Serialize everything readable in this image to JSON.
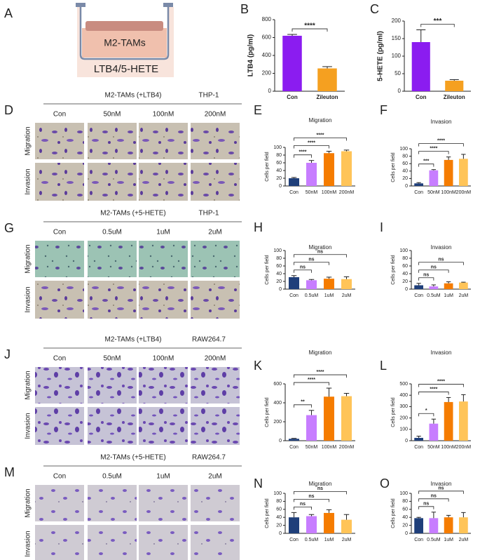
{
  "panel_a": {
    "label": "A",
    "well_label": "M2-TAMs",
    "medium_label": "LTB4/5-HETE"
  },
  "micrographs": [
    {
      "label": "D",
      "condition": "M2-TAMs (+LTB4)",
      "cell_line": "THP-1",
      "columns": [
        "Con",
        "50nM",
        "100nM",
        "200nM"
      ],
      "rows": [
        "Migration",
        "Invasion"
      ]
    },
    {
      "label": "G",
      "condition": "M2-TAMs (+5-HETE)",
      "cell_line": "THP-1",
      "columns": [
        "Con",
        "0.5uM",
        "1uM",
        "2uM"
      ],
      "rows": [
        "Migration",
        "Invasion"
      ]
    },
    {
      "label": "J",
      "condition": "M2-TAMs (+LTB4)",
      "cell_line": "RAW264.7",
      "columns": [
        "Con",
        "50nM",
        "100nM",
        "200nM"
      ],
      "rows": [
        "Migration",
        "Invasion"
      ]
    },
    {
      "label": "M",
      "condition": "M2-TAMs (+5-HETE)",
      "cell_line": "RAW264.7",
      "columns": [
        "Con",
        "0.5uM",
        "1uM",
        "2uM"
      ],
      "rows": [
        "Migration",
        "Invasion"
      ]
    }
  ],
  "chart_data": [
    {
      "type": "bar",
      "label": "B",
      "y_label": "LTB4 (pg/ml)",
      "categories": [
        "Con",
        "Zileuton"
      ],
      "values": [
        620,
        255
      ],
      "errors": [
        15,
        20
      ],
      "colors": [
        "#8b1cf0",
        "#f5a020"
      ],
      "ylim": [
        0,
        800
      ],
      "yticks": [
        0,
        200,
        400,
        600,
        800
      ],
      "significance": [
        "****"
      ]
    },
    {
      "type": "bar",
      "label": "C",
      "y_label": "5-HETE (pg/ml)",
      "categories": [
        "Con",
        "Zileuton"
      ],
      "values": [
        140,
        30
      ],
      "errors": [
        35,
        3
      ],
      "colors": [
        "#8b1cf0",
        "#f5a020"
      ],
      "ylim": [
        0,
        200
      ],
      "yticks": [
        0,
        50,
        100,
        150,
        200
      ],
      "significance": [
        "***"
      ]
    },
    {
      "type": "bar",
      "label": "E",
      "title": "Migration",
      "y_label": "Cells per field",
      "categories": [
        "Con",
        "50nM",
        "100nM",
        "200nM"
      ],
      "values": [
        20,
        60,
        85,
        90
      ],
      "errors": [
        2,
        6,
        5,
        3
      ],
      "colors": [
        "#1f3f7a",
        "#c77dff",
        "#f57c00",
        "#ffc458"
      ],
      "ylim": [
        0,
        100
      ],
      "yticks": [
        0,
        20,
        40,
        60,
        80,
        100
      ],
      "significance": [
        "****",
        "****",
        "****"
      ]
    },
    {
      "type": "bar",
      "label": "F",
      "title": "Invasion",
      "y_label": "Cells per field",
      "categories": [
        "Con",
        "50nM",
        "100nM",
        "200nM"
      ],
      "values": [
        7,
        42,
        70,
        73
      ],
      "errors": [
        2,
        2,
        8,
        12
      ],
      "colors": [
        "#1f3f7a",
        "#c77dff",
        "#f57c00",
        "#ffc458"
      ],
      "ylim": [
        0,
        100
      ],
      "yticks": [
        0,
        20,
        40,
        60,
        80,
        100
      ],
      "significance": [
        "***",
        "****",
        "****"
      ]
    },
    {
      "type": "bar",
      "label": "H",
      "title": "Migration",
      "y_label": "Cells per field",
      "categories": [
        "Con",
        "0.5uM",
        "1uM",
        "2uM"
      ],
      "values": [
        31,
        23,
        27,
        26
      ],
      "errors": [
        4,
        2,
        4,
        6
      ],
      "colors": [
        "#1f3f7a",
        "#c77dff",
        "#f57c00",
        "#ffc458"
      ],
      "ylim": [
        0,
        100
      ],
      "yticks": [
        0,
        20,
        40,
        60,
        80,
        100
      ],
      "significance": [
        "ns",
        "ns",
        "ns"
      ]
    },
    {
      "type": "bar",
      "label": "I",
      "title": "Invasion",
      "y_label": "Cells per field",
      "categories": [
        "Con",
        "0.5uM",
        "1uM",
        "2uM"
      ],
      "values": [
        10,
        7,
        15,
        17
      ],
      "errors": [
        5,
        4,
        4,
        1
      ],
      "colors": [
        "#1f3f7a",
        "#c77dff",
        "#f57c00",
        "#ffc458"
      ],
      "ylim": [
        0,
        100
      ],
      "yticks": [
        0,
        20,
        40,
        60,
        80,
        100
      ],
      "significance": [
        "ns",
        "ns",
        "ns"
      ]
    },
    {
      "type": "bar",
      "label": "K",
      "title": "Migration",
      "y_label": "Cells per field",
      "categories": [
        "Con",
        "50nM",
        "100nM",
        "200nM"
      ],
      "values": [
        20,
        270,
        465,
        470
      ],
      "errors": [
        5,
        50,
        90,
        30
      ],
      "colors": [
        "#1f3f7a",
        "#c77dff",
        "#f57c00",
        "#ffc458"
      ],
      "ylim": [
        0,
        600
      ],
      "yticks": [
        0,
        200,
        400,
        600
      ],
      "significance": [
        "**",
        "****",
        "****"
      ]
    },
    {
      "type": "bar",
      "label": "L",
      "title": "Invasion",
      "y_label": "Cells per field",
      "categories": [
        "Con",
        "50nM",
        "100nM",
        "200nM"
      ],
      "values": [
        25,
        150,
        340,
        345
      ],
      "errors": [
        15,
        40,
        40,
        60
      ],
      "colors": [
        "#1f3f7a",
        "#c77dff",
        "#f57c00",
        "#ffc458"
      ],
      "ylim": [
        0,
        500
      ],
      "yticks": [
        0,
        100,
        200,
        300,
        400,
        500
      ],
      "significance": [
        "*",
        "****",
        "****"
      ]
    },
    {
      "type": "bar",
      "label": "N",
      "title": "Migration",
      "y_label": "Cells per field",
      "categories": [
        "Con",
        "0.5uM",
        "1uM",
        "2uM"
      ],
      "values": [
        40,
        43,
        51,
        34
      ],
      "errors": [
        12,
        4,
        8,
        13
      ],
      "colors": [
        "#1f3f7a",
        "#c77dff",
        "#f57c00",
        "#ffc458"
      ],
      "ylim": [
        0,
        100
      ],
      "yticks": [
        0,
        20,
        40,
        60,
        80,
        100
      ],
      "significance": [
        "ns",
        "ns",
        "ns"
      ]
    },
    {
      "type": "bar",
      "label": "O",
      "title": "Invasion",
      "y_label": "Cells per field",
      "categories": [
        "Con",
        "0.5uM",
        "1uM",
        "2uM"
      ],
      "values": [
        38,
        38,
        40,
        40
      ],
      "errors": [
        2,
        15,
        5,
        12
      ],
      "colors": [
        "#1f3f7a",
        "#c77dff",
        "#f57c00",
        "#ffc458"
      ],
      "ylim": [
        0,
        100
      ],
      "yticks": [
        0,
        20,
        40,
        60,
        80,
        100
      ],
      "significance": [
        "ns",
        "ns",
        "ns"
      ]
    }
  ]
}
